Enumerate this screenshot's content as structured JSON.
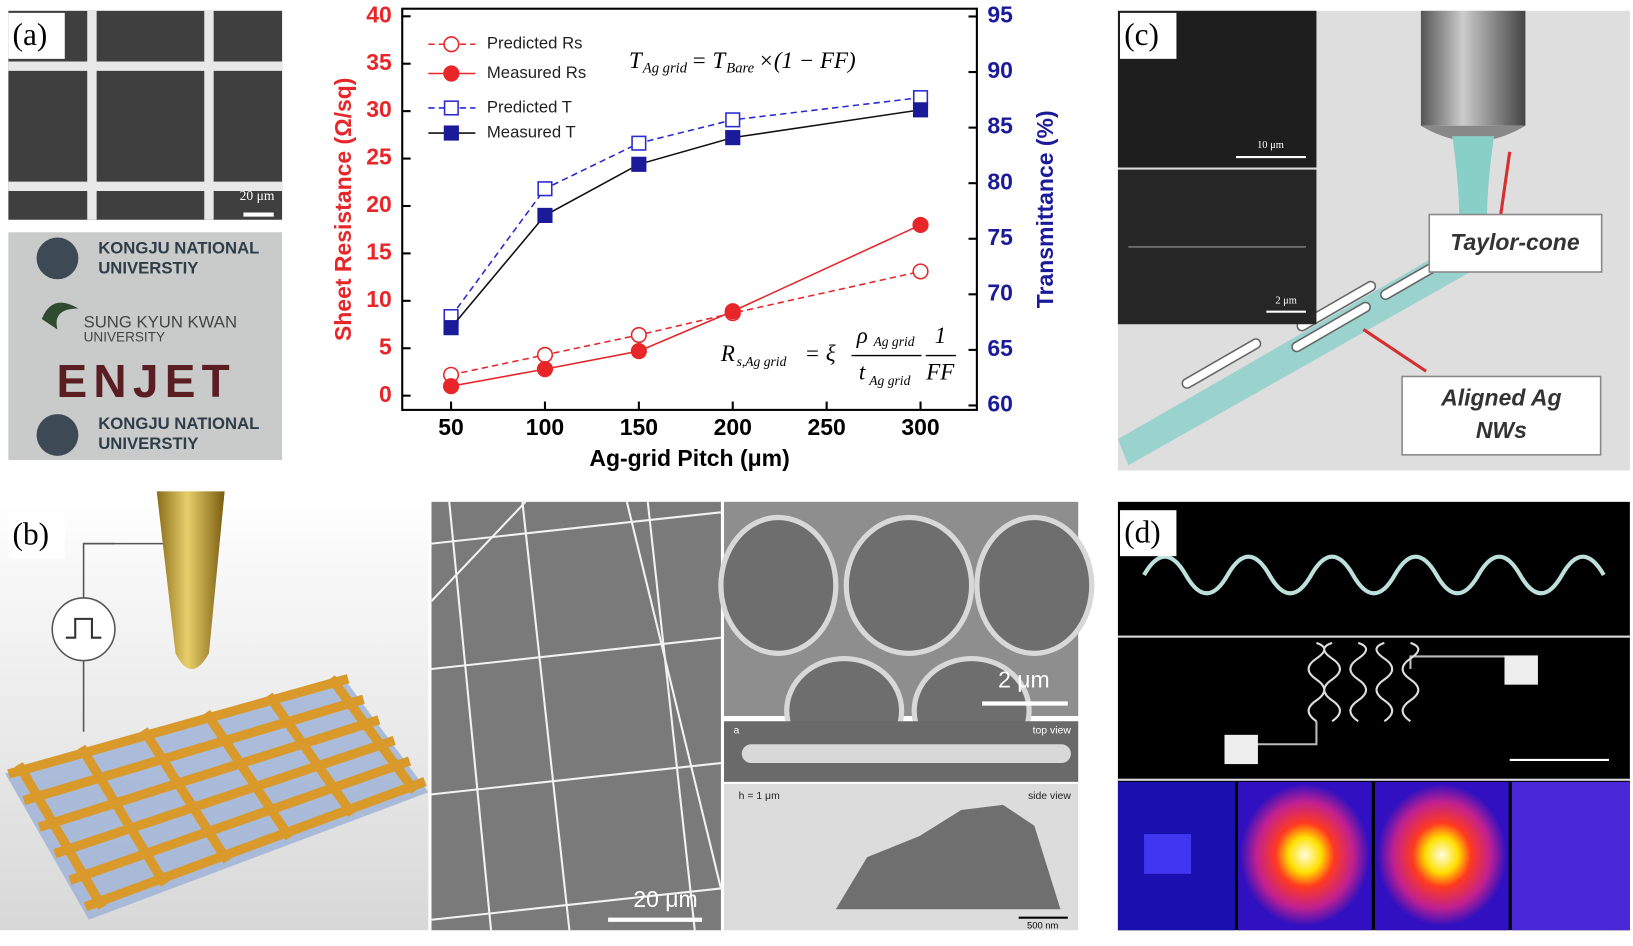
{
  "panel_labels": [
    "(a)",
    "(b)",
    "(c)",
    "(d)"
  ],
  "image_text": {
    "a_scale": "20 μm",
    "a_logo": [
      "KONGJU NATIONAL",
      "UNIVERSTIY",
      "SUNG KYUN KWAN",
      "UNIVERSITY",
      "ENJET",
      "KONGJU NATIONAL",
      "UNIVERSTIY"
    ],
    "b_scale_grid": "20 μm",
    "b_scale_hex": "2 μm",
    "b_line_tag": "a",
    "b_top_view": "top view",
    "b_height": "h = 1 μm",
    "b_side_view": "side view",
    "b_scale_side": "500 nm",
    "c_scale_top": "10 μm",
    "c_scale_bottom": "2 μm",
    "c_taylor": "Taylor-cone",
    "c_aligned": [
      "Aligned Ag",
      "NWs"
    ]
  },
  "chart_data": {
    "type": "line",
    "x_label": "Ag-grid Pitch (μm)",
    "y_label": "Sheet Resistance (Ω/sq)",
    "y2_label": "Transmittance (%)",
    "x": [
      50,
      100,
      150,
      200,
      300
    ],
    "xlim": [
      24,
      330
    ],
    "xticks": [
      50,
      100,
      150,
      200,
      250,
      300
    ],
    "ylim": [
      -1.5,
      40.8
    ],
    "yticks": [
      0,
      5,
      10,
      15,
      20,
      25,
      30,
      35,
      40
    ],
    "y2lim": [
      59.6,
      95.7
    ],
    "y2ticks": [
      60,
      65,
      70,
      75,
      80,
      85,
      90,
      95
    ],
    "y_color": "#e8262a",
    "y2_color": "#1b1b9a",
    "series": [
      {
        "name": "Predicted Rs",
        "color": "#e8262a",
        "style": "dashed",
        "marker": "circle-open",
        "axis": "y",
        "values": [
          2.2,
          4.3,
          6.4,
          8.7,
          13.1
        ]
      },
      {
        "name": "Measured Rs",
        "color": "#e8262a",
        "style": "solid",
        "marker": "circle-filled",
        "axis": "y",
        "values": [
          1.0,
          2.8,
          4.7,
          8.9,
          18.0
        ]
      },
      {
        "name": "Predicted T",
        "color": "#2a2ad0",
        "style": "dashed",
        "marker": "square-open",
        "axis": "y2",
        "values": [
          68.0,
          79.5,
          83.6,
          85.7,
          87.7
        ]
      },
      {
        "name": "Measured T",
        "color": "#111111",
        "marker_color": "#1b1b9a",
        "style": "solid",
        "marker": "square-filled",
        "axis": "y2",
        "values": [
          67.0,
          77.1,
          81.7,
          84.1,
          86.6
        ]
      }
    ],
    "formula_1": [
      "T",
      "Ag grid",
      "= T",
      "Bare",
      "×(1 − FF)"
    ],
    "formula_2": [
      "R",
      "s,Ag grid",
      "= ξ",
      "ρ",
      "Ag grid",
      "t",
      "Ag grid",
      "1",
      "FF"
    ]
  }
}
